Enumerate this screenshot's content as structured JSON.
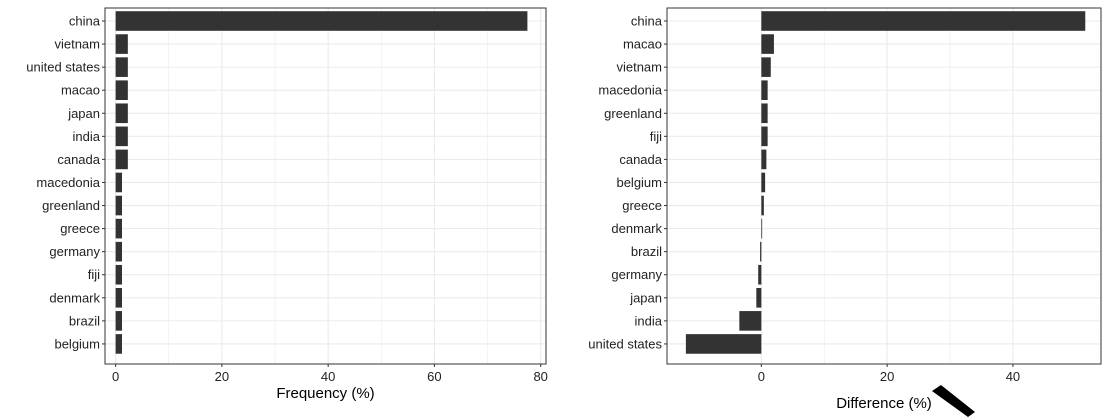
{
  "colors": {
    "bar": "#333333",
    "grid": "#ebebeb",
    "panel_border": "#333333",
    "background": "#ffffff",
    "text": "#222222"
  },
  "chart_data": [
    {
      "type": "bar",
      "orientation": "horizontal",
      "categories": [
        "china",
        "vietnam",
        "united states",
        "macao",
        "japan",
        "india",
        "canada",
        "macedonia",
        "greenland",
        "greece",
        "germany",
        "fiji",
        "denmark",
        "brazil",
        "belgium"
      ],
      "values": [
        77.5,
        2.3,
        2.3,
        2.3,
        2.3,
        2.3,
        2.3,
        1.2,
        1.2,
        1.2,
        1.2,
        1.2,
        1.2,
        1.2,
        1.2
      ],
      "xlabel": "Frequency (%)",
      "ylabel": "",
      "xlim": [
        -2,
        81
      ],
      "xticks": [
        0,
        20,
        40,
        60,
        80
      ],
      "grid": true
    },
    {
      "type": "bar",
      "orientation": "horizontal",
      "categories": [
        "china",
        "macao",
        "vietnam",
        "macedonia",
        "greenland",
        "fiji",
        "canada",
        "belgium",
        "greece",
        "denmark",
        "brazil",
        "germany",
        "japan",
        "india",
        "united states"
      ],
      "values": [
        51.5,
        2.0,
        1.5,
        1.0,
        1.0,
        1.0,
        0.8,
        0.6,
        0.4,
        0.1,
        -0.2,
        -0.5,
        -0.8,
        -3.5,
        -12.0
      ],
      "xlabel": "Difference (%)",
      "ylabel": "",
      "xlim": [
        -15,
        54
      ],
      "xticks": [
        0,
        20,
        40
      ],
      "grid": true
    }
  ]
}
